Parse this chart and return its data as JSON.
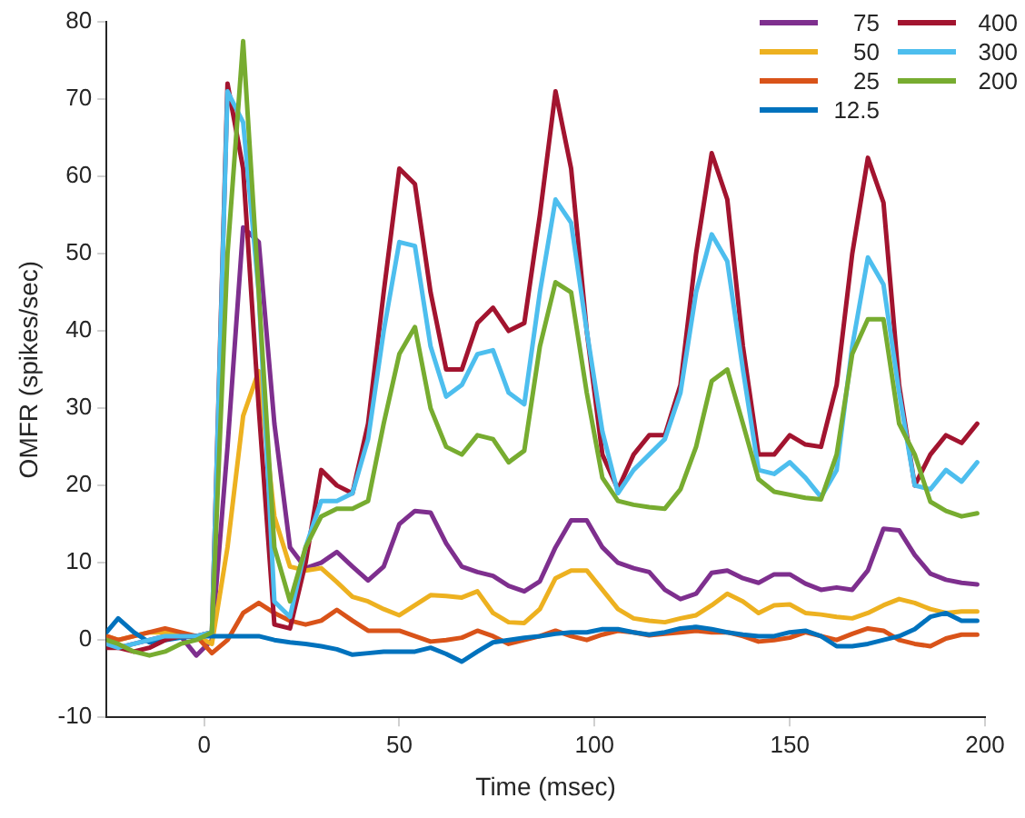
{
  "chart_data": {
    "type": "line",
    "xlabel": "Time (msec)",
    "ylabel": "OMFR (spikes/sec)",
    "xlim": [
      -25,
      200
    ],
    "xticks": [
      0,
      50,
      100,
      150,
      200
    ],
    "ylim": [
      -10,
      80
    ],
    "yticks": [
      -10,
      0,
      10,
      20,
      30,
      40,
      50,
      60,
      70,
      80
    ],
    "grid": false,
    "legend": "top right",
    "marker": "none",
    "line_style": "solid",
    "x": [
      -25,
      -22,
      -18,
      -14,
      -10,
      -6,
      -2,
      2,
      6,
      10,
      14,
      18,
      22,
      26,
      30,
      34,
      38,
      42,
      46,
      50,
      54,
      58,
      62,
      66,
      70,
      74,
      78,
      82,
      86,
      90,
      94,
      98,
      102,
      106,
      110,
      114,
      118,
      122,
      126,
      130,
      134,
      138,
      142,
      146,
      150,
      154,
      158,
      162,
      166,
      170,
      174,
      178,
      182,
      186,
      190,
      194,
      198
    ],
    "series": [
      {
        "name": "75",
        "color": "#7e2f8e",
        "values": [
          -0.5,
          -1,
          -0.5,
          0,
          0.5,
          0.5,
          -2,
          0,
          25,
          53.4,
          51.5,
          28,
          12,
          9.3,
          10,
          11.4,
          9.5,
          7.7,
          9.5,
          15,
          16.7,
          16.5,
          12.5,
          9.5,
          8.8,
          8.3,
          7,
          6.3,
          7.6,
          12,
          15.5,
          15.5,
          12,
          10,
          9.3,
          8.8,
          6.5,
          5.3,
          6,
          8.7,
          9,
          8,
          7.4,
          8.5,
          8.5,
          7.3,
          6.5,
          6.8,
          6.5,
          9,
          14.4,
          14.2,
          11,
          8.6,
          7.8,
          7.4,
          7.2
        ]
      },
      {
        "name": "50",
        "color": "#edb120",
        "values": [
          0.5,
          0,
          0.5,
          1,
          1,
          0.5,
          0.5,
          -0.5,
          12,
          29,
          34.8,
          16,
          9.5,
          9,
          9.3,
          7.5,
          5.6,
          5,
          4,
          3.2,
          4.5,
          5.8,
          5.7,
          5.5,
          6.3,
          3.5,
          2.3,
          2.2,
          4,
          8,
          9,
          9,
          6.5,
          4,
          2.8,
          2.5,
          2.3,
          2.8,
          3.2,
          4.5,
          6,
          5,
          3.5,
          4.5,
          4.6,
          3.5,
          3.3,
          3,
          2.8,
          3.5,
          4.5,
          5.3,
          4.8,
          4,
          3.5,
          3.7,
          3.7
        ]
      },
      {
        "name": "25",
        "color": "#d95319",
        "values": [
          0.5,
          0,
          0.5,
          1,
          1.5,
          1,
          0.5,
          -1.7,
          0,
          3.5,
          4.8,
          3.5,
          2.5,
          2,
          2.5,
          3.9,
          2.5,
          1.2,
          1.2,
          1.2,
          0.5,
          -0.2,
          0,
          0.3,
          1.2,
          0.5,
          -0.5,
          0,
          0.5,
          1.2,
          0.5,
          0,
          0.7,
          1.2,
          1,
          0.6,
          0.8,
          1,
          1.2,
          1,
          1,
          0.5,
          -0.2,
          0,
          0.3,
          1,
          0.5,
          0,
          0.8,
          1.5,
          1.2,
          0,
          -0.5,
          -0.8,
          0.2,
          0.7,
          0.7
        ]
      },
      {
        "name": "12.5",
        "color": "#0072bd",
        "values": [
          1,
          2.8,
          1,
          -0.3,
          0,
          0.3,
          0.5,
          0.5,
          0.5,
          0.5,
          0.5,
          0,
          -0.3,
          -0.5,
          -0.8,
          -1.2,
          -1.9,
          -1.7,
          -1.5,
          -1.5,
          -1.5,
          -1,
          -1.8,
          -2.8,
          -1.5,
          -0.3,
          0,
          0.3,
          0.5,
          0.8,
          1,
          1,
          1.4,
          1.4,
          1,
          0.7,
          1,
          1.5,
          1.7,
          1.4,
          1,
          0.7,
          0.5,
          0.5,
          1,
          1.2,
          0.5,
          -0.8,
          -0.8,
          -0.5,
          0,
          0.5,
          1.4,
          3,
          3.5,
          2.5,
          2.5
        ]
      },
      {
        "name": "400",
        "color": "#a2142f",
        "values": [
          -1,
          -1,
          -1.5,
          -1,
          0,
          0.5,
          0.5,
          1,
          72,
          61,
          30,
          2,
          1.5,
          10,
          22,
          20,
          19,
          28,
          45,
          61,
          59,
          45,
          35,
          35,
          41,
          43,
          40,
          41,
          55,
          71,
          61,
          40,
          24,
          19.5,
          24,
          26.5,
          26.5,
          33,
          50,
          63,
          57,
          38,
          24,
          24,
          26.5,
          25.3,
          25,
          33,
          50,
          62.4,
          56.6,
          33,
          20,
          24,
          26.5,
          25.5,
          28
        ]
      },
      {
        "name": "300",
        "color": "#4dbeee",
        "values": [
          -0.5,
          -1,
          -0.5,
          0,
          0.5,
          0.5,
          0.5,
          1,
          71,
          67,
          45,
          5,
          3,
          12,
          18,
          18,
          19,
          26,
          40,
          51.5,
          51,
          38,
          31.5,
          33,
          37,
          37.5,
          32,
          30.5,
          45,
          57,
          54,
          40,
          27,
          19,
          22,
          24,
          26,
          32,
          45,
          52.5,
          49,
          35,
          22,
          21.5,
          23,
          21,
          18.5,
          22,
          38,
          49.5,
          46,
          32,
          20,
          19.5,
          22,
          20.5,
          23
        ]
      },
      {
        "name": "200",
        "color": "#77ac30",
        "values": [
          0,
          -0.5,
          -1.5,
          -2,
          -1.5,
          -0.5,
          0,
          1,
          50,
          77.5,
          45,
          12,
          5,
          12,
          16,
          17,
          17,
          18,
          28,
          37,
          40.5,
          30,
          25,
          24,
          26.5,
          26,
          23,
          24.5,
          38,
          46.3,
          45,
          32,
          21,
          18,
          17.5,
          17.2,
          17,
          19.5,
          25,
          33.5,
          35,
          28,
          20.8,
          19.2,
          18.8,
          18.4,
          18.2,
          24,
          37,
          41.5,
          41.5,
          28,
          24,
          17.9,
          16.7,
          16,
          16.4
        ]
      }
    ]
  }
}
